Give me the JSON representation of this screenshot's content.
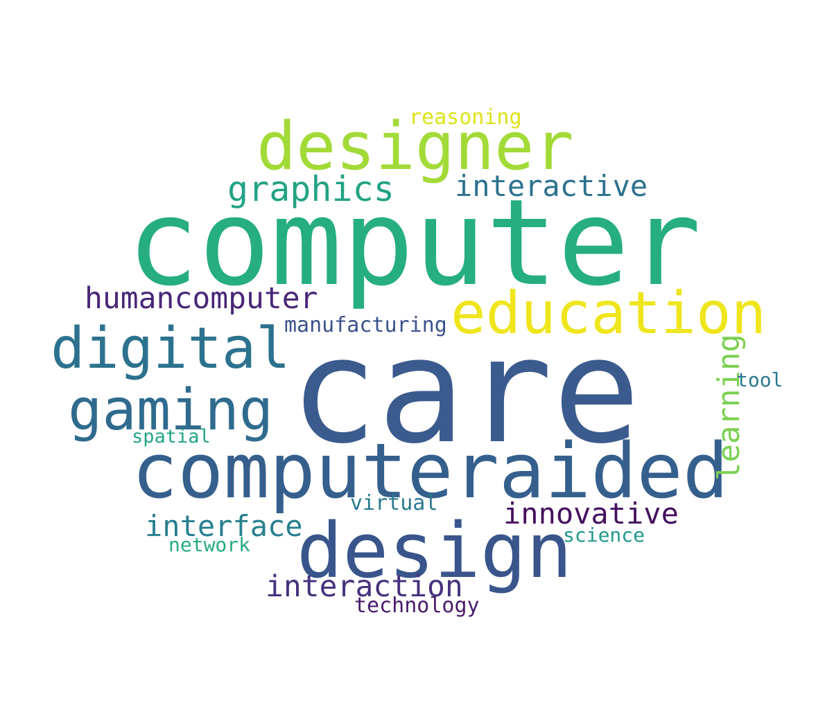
{
  "words": {
    "care": {
      "text": "care",
      "color": "#3b5b8e"
    },
    "computer": {
      "text": "computer",
      "color": "#26ae80"
    },
    "computeraided": {
      "text": "computeraided",
      "color": "#355f8d"
    },
    "design": {
      "text": "design",
      "color": "#39558c"
    },
    "designer": {
      "text": "designer",
      "color": "#a2da37"
    },
    "education": {
      "text": "education",
      "color": "#efe51c"
    },
    "digital": {
      "text": "digital",
      "color": "#2c728e"
    },
    "gaming": {
      "text": "gaming",
      "color": "#2f6b8e"
    },
    "graphics": {
      "text": "graphics",
      "color": "#22a284"
    },
    "interactive": {
      "text": "interactive",
      "color": "#2c718e"
    },
    "humancomputer": {
      "text": "humancomputer",
      "color": "#482777"
    },
    "manufacturing": {
      "text": "manufacturing",
      "color": "#3b518b"
    },
    "reasoning": {
      "text": "reasoning",
      "color": "#dde318"
    },
    "learning": {
      "text": "learning",
      "color": "#7ad151"
    },
    "tool": {
      "text": "tool",
      "color": "#2a788e"
    },
    "spatial": {
      "text": "spatial",
      "color": "#20a486"
    },
    "virtual": {
      "text": "virtual",
      "color": "#2a788e"
    },
    "innovative": {
      "text": "innovative",
      "color": "#45115f"
    },
    "interface": {
      "text": "interface",
      "color": "#277f8e"
    },
    "network": {
      "text": "network",
      "color": "#25ab82"
    },
    "science": {
      "text": "science",
      "color": "#1f988b"
    },
    "interaction": {
      "text": "interaction",
      "color": "#46327e"
    },
    "technology": {
      "text": "technology",
      "color": "#481a6c"
    }
  }
}
